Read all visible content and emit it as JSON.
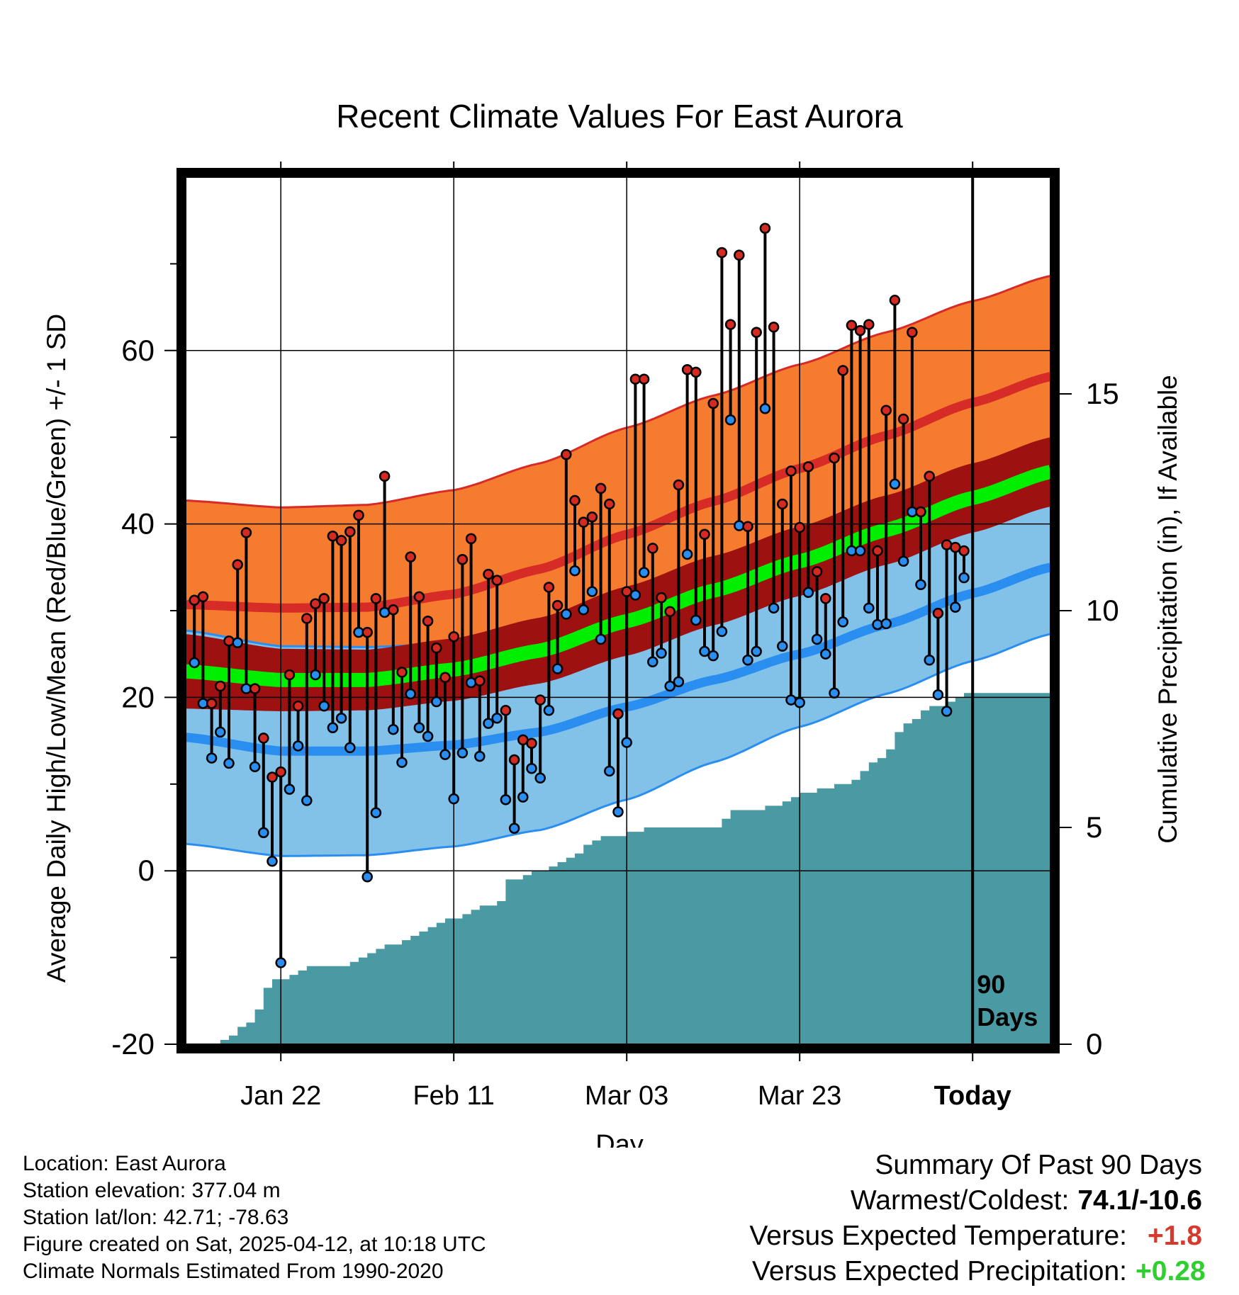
{
  "chart_data": {
    "type": "line",
    "title": "Recent Climate Values For East Aurora",
    "xlabel": "Day",
    "ylabel_left": "Average Daily High/Low/Mean (Red/Blue/Green) +/- 1 SD",
    "ylabel_right": "Cumulative Precipitation (in), If Available",
    "xlim": [
      -11,
      89
    ],
    "ylim_temp": [
      -20,
      80
    ],
    "ylim_precip": [
      0,
      20
    ],
    "x_ticks": [
      {
        "day": 0,
        "label": "Jan 22"
      },
      {
        "day": 20,
        "label": "Feb 11"
      },
      {
        "day": 40,
        "label": "Mar 03"
      },
      {
        "day": 60,
        "label": "Mar 23"
      },
      {
        "day": 80,
        "label": "Today"
      }
    ],
    "y_ticks_left": [
      "-20",
      "0",
      "20",
      "40",
      "60"
    ],
    "y_ticks_right": [
      "0",
      "5",
      "10",
      "15"
    ],
    "today_marker": {
      "day": 80,
      "label_line1": "90",
      "label_line2": "Days"
    },
    "normals": {
      "days": [
        -11,
        0,
        10,
        20,
        30,
        40,
        50,
        60,
        70,
        80,
        89
      ],
      "high_mean": [
        30.7,
        30.3,
        30.4,
        31.9,
        34.8,
        38.8,
        42.6,
        46.4,
        50.2,
        54.0,
        57.0
      ],
      "high_sd": [
        12.0,
        11.6,
        11.8,
        12.0,
        12.2,
        12.3,
        12.2,
        12.0,
        11.9,
        11.7,
        11.6
      ],
      "low_mean": [
        15.4,
        13.8,
        13.8,
        14.5,
        16.0,
        18.9,
        22.0,
        25.0,
        28.4,
        32.0,
        35.0
      ],
      "low_sd": [
        12.3,
        12.1,
        12.0,
        11.7,
        11.3,
        10.7,
        9.5,
        8.4,
        8.0,
        7.8,
        7.7
      ],
      "mean_mean": [
        23.0,
        22.0,
        22.0,
        23.2,
        25.4,
        28.8,
        32.3,
        35.7,
        39.3,
        43.0,
        46.0
      ],
      "mean_sd": [
        4.3,
        3.6,
        3.5,
        3.6,
        3.8,
        4.0,
        4.0,
        4.0,
        4.0,
        4.0,
        4.0
      ]
    },
    "observed": {
      "days": [
        -10,
        -9,
        -8,
        -7,
        -6,
        -5,
        -4,
        -3,
        -2,
        -1,
        0,
        1,
        2,
        3,
        4,
        5,
        6,
        7,
        8,
        9,
        10,
        11,
        12,
        13,
        14,
        15,
        16,
        17,
        18,
        19,
        20,
        21,
        22,
        23,
        24,
        25,
        26,
        27,
        28,
        29,
        30,
        31,
        32,
        33,
        34,
        35,
        36,
        37,
        38,
        39,
        40,
        41,
        42,
        43,
        44,
        45,
        46,
        47,
        48,
        49,
        50,
        51,
        52,
        53,
        54,
        55,
        56,
        57,
        58,
        59,
        60,
        61,
        62,
        63,
        64,
        65,
        66,
        67,
        68,
        69,
        70,
        71,
        72,
        73,
        74,
        75,
        76,
        77,
        78
      ],
      "high": [
        31.2,
        31.6,
        19.3,
        21.3,
        26.5,
        35.3,
        39.0,
        21.0,
        15.3,
        10.8,
        11.4,
        22.6,
        19.0,
        29.1,
        30.8,
        31.4,
        38.6,
        38.1,
        39.1,
        41.0,
        27.5,
        31.4,
        45.5,
        30.1,
        22.9,
        36.2,
        31.6,
        28.8,
        25.7,
        22.3,
        27.0,
        35.9,
        38.3,
        21.9,
        34.2,
        33.5,
        18.5,
        12.8,
        15.1,
        14.7,
        19.7,
        32.7,
        30.6,
        48.0,
        42.7,
        40.2,
        40.8,
        44.1,
        42.3,
        18.1,
        32.2,
        56.7,
        56.7,
        37.2,
        31.5,
        29.9,
        44.5,
        57.8,
        57.5,
        38.8,
        53.9,
        71.3,
        63.0,
        71.0,
        39.7,
        62.1,
        74.1,
        62.7,
        42.3,
        46.1,
        39.6,
        46.6,
        34.5,
        31.4,
        47.6,
        57.7,
        62.9,
        62.3,
        63.0,
        36.9,
        53.1,
        65.8,
        52.1,
        62.1,
        41.4,
        45.5,
        29.7,
        37.6,
        37.3
      ],
      "low": [
        24.0,
        19.3,
        13.0,
        16.0,
        12.4,
        26.3,
        21.0,
        12.0,
        4.4,
        1.1,
        -10.6,
        9.4,
        14.4,
        8.1,
        22.6,
        19.0,
        16.5,
        17.6,
        14.2,
        27.5,
        -0.7,
        6.7,
        29.8,
        16.3,
        12.5,
        20.4,
        16.5,
        15.5,
        19.5,
        13.4,
        8.3,
        13.6,
        21.7,
        13.2,
        17.0,
        17.6,
        8.2,
        4.9,
        8.5,
        11.8,
        10.7,
        18.5,
        23.3,
        29.6,
        34.6,
        30.1,
        32.2,
        26.7,
        11.5,
        6.8,
        14.8,
        31.8,
        34.4,
        24.1,
        25.1,
        21.3,
        21.8,
        36.5,
        28.9,
        25.3,
        24.8,
        27.6,
        52.0,
        39.8,
        24.3,
        25.3,
        53.3,
        30.3,
        25.9,
        19.7,
        19.4,
        32.1,
        26.7,
        25.0,
        20.5,
        28.7,
        36.9,
        36.9,
        30.3,
        28.4,
        28.5,
        44.6,
        35.7,
        41.4,
        33.0,
        24.3,
        20.3,
        18.4,
        30.4
      ]
    },
    "extra_mean_marker": {
      "day": 79,
      "value": 36.9,
      "low": 33.8
    },
    "cumulative_precip": {
      "days": [
        -11,
        -9,
        -7,
        -6,
        -5,
        -4,
        -3,
        -2,
        -1,
        0,
        1,
        2,
        3,
        4,
        5,
        6,
        7,
        8,
        9,
        10,
        11,
        12,
        13,
        14,
        15,
        16,
        17,
        18,
        19,
        20,
        21,
        22,
        23,
        24,
        25,
        26,
        27,
        28,
        29,
        30,
        31,
        32,
        33,
        34,
        35,
        36,
        37,
        38,
        39,
        40,
        41,
        42,
        43,
        44,
        45,
        46,
        47,
        48,
        49,
        50,
        51,
        52,
        53,
        54,
        55,
        56,
        57,
        58,
        59,
        60,
        61,
        62,
        63,
        64,
        65,
        66,
        67,
        68,
        69,
        70,
        71,
        72,
        73,
        74,
        75,
        76,
        77,
        78,
        79,
        80,
        89
      ],
      "values": [
        0.0,
        0.0,
        0.1,
        0.2,
        0.4,
        0.5,
        0.8,
        1.3,
        1.5,
        1.5,
        1.6,
        1.7,
        1.8,
        1.8,
        1.8,
        1.8,
        1.8,
        1.9,
        2.0,
        2.1,
        2.2,
        2.3,
        2.3,
        2.4,
        2.5,
        2.6,
        2.7,
        2.8,
        2.9,
        2.9,
        3.0,
        3.1,
        3.2,
        3.2,
        3.3,
        3.8,
        3.8,
        3.9,
        4.0,
        4.0,
        4.1,
        4.2,
        4.3,
        4.4,
        4.6,
        4.7,
        4.8,
        4.8,
        4.8,
        4.9,
        4.9,
        5.0,
        5.0,
        5.0,
        5.0,
        5.0,
        5.0,
        5.0,
        5.0,
        5.0,
        5.2,
        5.4,
        5.4,
        5.4,
        5.4,
        5.5,
        5.5,
        5.6,
        5.7,
        5.8,
        5.8,
        5.9,
        5.9,
        6.0,
        6.0,
        6.1,
        6.3,
        6.5,
        6.6,
        6.8,
        7.2,
        7.4,
        7.5,
        7.7,
        7.8,
        7.8,
        7.9,
        8.0,
        8.1,
        8.1,
        8.1
      ]
    },
    "colors": {
      "high_band": "#f57c2e",
      "high_band_edge": "#d62b27",
      "high_mean": "#d62b27",
      "low_band": "#82c1e8",
      "low_band_edge": "#2a8ef0",
      "low_mean": "#2a8ef0",
      "mean_band": "#9e1111",
      "mean_line": "#00ee00",
      "precip": "#4a9aa4",
      "high_point": "#d42a22",
      "low_point": "#2a8ef0"
    }
  },
  "info": {
    "location": "Location: East Aurora",
    "elevation": "Station elevation: 377.04 m",
    "latlon": "Station lat/lon: 42.71; -78.63",
    "created": "Figure created on Sat, 2025-04-12, at 10:18 UTC",
    "normals": "Climate Normals Estimated From 1990-2020"
  },
  "summary": {
    "title": "Summary Of Past 90 Days",
    "warm_cold_label": "Warmest/Coldest:",
    "warm_cold_value": "74.1/-10.6",
    "temp_label": "Versus Expected Temperature:",
    "temp_value": "+1.8",
    "precip_label": "Versus Expected Precipitation:",
    "precip_value": "+0.28"
  }
}
